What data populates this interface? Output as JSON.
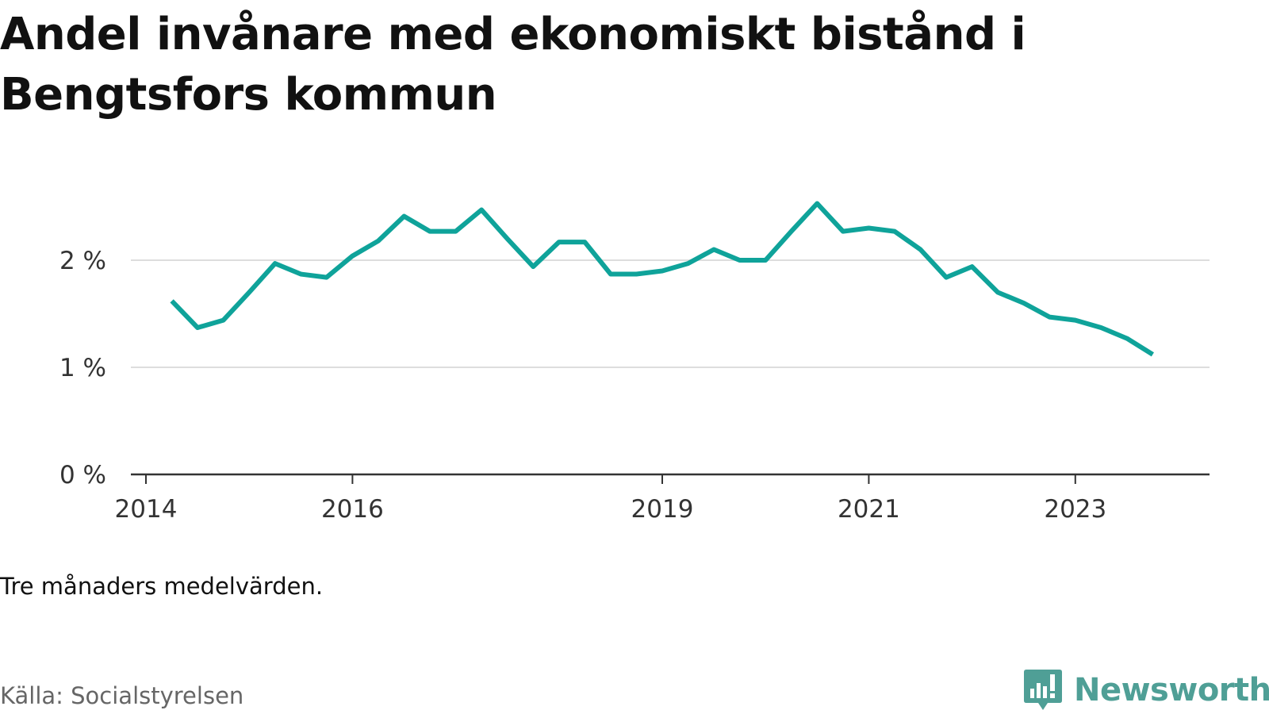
{
  "title": "Andel invånare med ekonomiskt bistånd i Bengtsfors kommun",
  "note": "Tre månaders medelvärden.",
  "source": "Källa: Socialstyrelsen",
  "brand": {
    "name": "Newsworthy",
    "color": "#4f9f96",
    "icon": "bar-chart-speech-bubble-icon"
  },
  "colors": {
    "line": "#0fa39a",
    "grid": "#dddddd",
    "axis": "#333333"
  },
  "chart_data": {
    "type": "line",
    "title": "Andel invånare med ekonomiskt bistånd i Bengtsfors kommun",
    "xlabel": "",
    "ylabel": "",
    "x_ticks": [
      "2014",
      "2016",
      "2019",
      "2021",
      "2023"
    ],
    "y_ticks": [
      "0 %",
      "1 %",
      "2 %"
    ],
    "ylim": [
      0,
      2.6
    ],
    "grid": "horizontal",
    "series": [
      {
        "values": [
          {
            "x": "2014-04",
            "y": 1.62
          },
          {
            "x": "2014-07",
            "y": 1.37
          },
          {
            "x": "2014-10",
            "y": 1.44
          },
          {
            "x": "2015-01",
            "y": 1.7
          },
          {
            "x": "2015-04",
            "y": 1.97
          },
          {
            "x": "2015-07",
            "y": 1.87
          },
          {
            "x": "2015-10",
            "y": 1.84
          },
          {
            "x": "2016-01",
            "y": 2.04
          },
          {
            "x": "2016-04",
            "y": 2.18
          },
          {
            "x": "2016-07",
            "y": 2.41
          },
          {
            "x": "2016-10",
            "y": 2.27
          },
          {
            "x": "2017-01",
            "y": 2.27
          },
          {
            "x": "2017-04",
            "y": 2.47
          },
          {
            "x": "2017-07",
            "y": 2.2
          },
          {
            "x": "2017-10",
            "y": 1.94
          },
          {
            "x": "2018-01",
            "y": 2.17
          },
          {
            "x": "2018-04",
            "y": 2.17
          },
          {
            "x": "2018-07",
            "y": 1.87
          },
          {
            "x": "2018-10",
            "y": 1.87
          },
          {
            "x": "2019-01",
            "y": 1.9
          },
          {
            "x": "2019-04",
            "y": 1.97
          },
          {
            "x": "2019-07",
            "y": 2.1
          },
          {
            "x": "2019-10",
            "y": 2.0
          },
          {
            "x": "2020-01",
            "y": 2.0
          },
          {
            "x": "2020-04",
            "y": 2.27
          },
          {
            "x": "2020-07",
            "y": 2.53
          },
          {
            "x": "2020-10",
            "y": 2.27
          },
          {
            "x": "2021-01",
            "y": 2.3
          },
          {
            "x": "2021-04",
            "y": 2.27
          },
          {
            "x": "2021-07",
            "y": 2.1
          },
          {
            "x": "2021-10",
            "y": 1.84
          },
          {
            "x": "2022-01",
            "y": 1.94
          },
          {
            "x": "2022-04",
            "y": 1.7
          },
          {
            "x": "2022-07",
            "y": 1.6
          },
          {
            "x": "2022-10",
            "y": 1.47
          },
          {
            "x": "2023-01",
            "y": 1.44
          },
          {
            "x": "2023-04",
            "y": 1.37
          },
          {
            "x": "2023-07",
            "y": 1.27
          },
          {
            "x": "2023-10",
            "y": 1.12
          }
        ]
      }
    ]
  }
}
